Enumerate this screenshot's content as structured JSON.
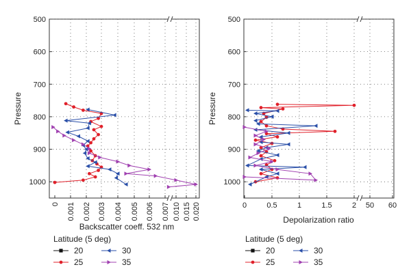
{
  "chart_data": [
    {
      "type": "line",
      "ylabel": "Pressure",
      "xlabel": "Backscatter coeff. 532 nm",
      "ylim": [
        1050,
        500
      ],
      "y_ticks": [
        500,
        600,
        700,
        800,
        900,
        1000
      ],
      "x_break_after": 0.006,
      "x_ticks": [
        "0",
        "0.001",
        "0.002",
        "0.003",
        "0.004",
        "0.005",
        "0.006",
        "0.007",
        "0.010",
        "0.015",
        "0.020"
      ],
      "x_ticks_numeric": [
        0,
        0.001,
        0.002,
        0.003,
        0.004,
        0.005,
        0.006,
        0.007,
        0.01,
        0.015,
        0.02
      ],
      "grid": true,
      "legend_position": "bottom-left",
      "series": [
        {
          "name": "25",
          "color": "#e0202a",
          "marker": "circle",
          "points": [
            [
              0.0007,
              760
            ],
            [
              0.0012,
              770
            ],
            [
              0.0018,
              780
            ],
            [
              0.003,
              790
            ],
            [
              0.0028,
              805
            ],
            [
              0.0023,
              815
            ],
            [
              0.003,
              830
            ],
            [
              0.0025,
              840
            ],
            [
              0.0028,
              855
            ],
            [
              0.0025,
              868
            ],
            [
              0.0023,
              880
            ],
            [
              0.0021,
              890
            ],
            [
              0.0023,
              905
            ],
            [
              0.0026,
              920
            ],
            [
              0.0024,
              935
            ],
            [
              0.0027,
              945
            ],
            [
              0.003,
              955
            ],
            [
              0.0028,
              965
            ],
            [
              0.0022,
              975
            ],
            [
              0.0026,
              985
            ],
            [
              0.0018,
              995
            ],
            [
              0.0,
              1002
            ]
          ]
        },
        {
          "name": "30",
          "color": "#2a4fa8",
          "marker": "triangle-left",
          "points": [
            [
              0.0021,
              778
            ],
            [
              0.0038,
              795
            ],
            [
              0.0007,
              812
            ],
            [
              0.0022,
              820
            ],
            [
              0.0021,
              835
            ],
            [
              0.0008,
              848
            ],
            [
              0.0015,
              860
            ],
            [
              0.0021,
              875
            ],
            [
              0.0018,
              888
            ],
            [
              0.002,
              900
            ],
            [
              0.0019,
              912
            ],
            [
              0.0021,
              928
            ],
            [
              0.0026,
              940
            ],
            [
              0.0021,
              952
            ],
            [
              0.0035,
              962
            ],
            [
              0.004,
              975
            ],
            [
              0.0039,
              988
            ],
            [
              0.0045,
              1008
            ]
          ]
        },
        {
          "name": "35",
          "color": "#a040b0",
          "marker": "triangle-right",
          "points": [
            [
              -0.0001,
              832
            ],
            [
              0.0002,
              845
            ],
            [
              0.0006,
              858
            ],
            [
              0.0012,
              872
            ],
            [
              0.0018,
              885
            ],
            [
              0.0022,
              898
            ],
            [
              0.0022,
              912
            ],
            [
              0.0029,
              925
            ],
            [
              0.004,
              938
            ],
            [
              0.0047,
              950
            ],
            [
              0.006,
              962
            ],
            [
              0.0045,
              975
            ],
            [
              0.0064,
              982
            ],
            [
              0.01,
              995
            ],
            [
              0.02,
              1008
            ],
            [
              0.008,
              1016
            ]
          ]
        }
      ]
    },
    {
      "type": "line",
      "ylabel": "Pressure",
      "xlabel": "Depolarization ratio",
      "ylim": [
        1050,
        500
      ],
      "y_ticks": [
        500,
        600,
        700,
        800,
        900,
        1000
      ],
      "x_break_after": 2,
      "x_ticks": [
        "0",
        "0.5",
        "1",
        "1.5",
        "2",
        "50",
        "60"
      ],
      "x_ticks_numeric": [
        0,
        0.5,
        1,
        1.5,
        2,
        50,
        60
      ],
      "grid": true,
      "legend_position": "bottom-left",
      "series": [
        {
          "name": "25",
          "color": "#e0202a",
          "marker": "circle",
          "points": [
            [
              0.6,
              762
            ],
            [
              2.0,
              765
            ],
            [
              0.3,
              772
            ],
            [
              0.7,
              776
            ],
            [
              0.35,
              790
            ],
            [
              0.4,
              802
            ],
            [
              0.3,
              815
            ],
            [
              0.4,
              828
            ],
            [
              0.7,
              838
            ],
            [
              1.65,
              845
            ],
            [
              0.4,
              852
            ],
            [
              0.6,
              862
            ],
            [
              0.2,
              872
            ],
            [
              0.5,
              882
            ],
            [
              0.3,
              895
            ],
            [
              0.4,
              908
            ],
            [
              0.3,
              920
            ],
            [
              0.55,
              935
            ],
            [
              0.4,
              948
            ],
            [
              0.5,
              962
            ],
            [
              0.3,
              975
            ],
            [
              0.6,
              988
            ],
            [
              0.2,
              1000
            ]
          ]
        },
        {
          "name": "30",
          "color": "#2a4fa8",
          "marker": "triangle-left",
          "points": [
            [
              0.05,
              780
            ],
            [
              0.6,
              782
            ],
            [
              0.2,
              790
            ],
            [
              0.5,
              800
            ],
            [
              0.2,
              812
            ],
            [
              0.25,
              822
            ],
            [
              1.3,
              828
            ],
            [
              0.2,
              840
            ],
            [
              0.8,
              850
            ],
            [
              0.3,
              862
            ],
            [
              0.3,
              878
            ],
            [
              0.8,
              885
            ],
            [
              0.4,
              895
            ],
            [
              0.25,
              905
            ],
            [
              0.6,
              918
            ],
            [
              0.3,
              930
            ],
            [
              0.05,
              950
            ],
            [
              1.1,
              955
            ],
            [
              0.3,
              962
            ],
            [
              0.6,
              975
            ],
            [
              0.4,
              985
            ],
            [
              0.1,
              1008
            ]
          ]
        },
        {
          "name": "35",
          "color": "#a040b0",
          "marker": "triangle-right",
          "points": [
            [
              0.0,
              832
            ],
            [
              0.4,
              845
            ],
            [
              0.2,
              858
            ],
            [
              0.35,
              870
            ],
            [
              0.2,
              885
            ],
            [
              0.45,
              898
            ],
            [
              0.25,
              912
            ],
            [
              0.1,
              925
            ],
            [
              0.5,
              938
            ],
            [
              0.2,
              950
            ],
            [
              0.6,
              962
            ],
            [
              1.2,
              975
            ],
            [
              1.3,
              995
            ],
            [
              0.0,
              985
            ]
          ]
        },
        {
          "name": "20",
          "color": "#111111",
          "marker": "square",
          "points": []
        }
      ]
    }
  ],
  "legend": {
    "title": "Latitude (5 deg)",
    "items": [
      {
        "name": "20",
        "color": "#111111",
        "marker": "square"
      },
      {
        "name": "30",
        "color": "#2a4fa8",
        "marker": "triangle-left"
      },
      {
        "name": "25",
        "color": "#e0202a",
        "marker": "circle"
      },
      {
        "name": "35",
        "color": "#a040b0",
        "marker": "triangle-right"
      }
    ]
  }
}
